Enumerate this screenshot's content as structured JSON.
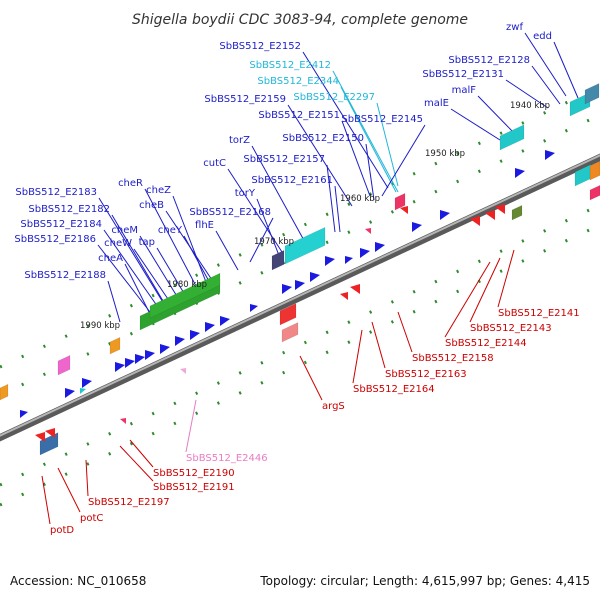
{
  "title": "Shigella boydii CDC 3083-94, complete genome",
  "footer": {
    "accession": "Accession: NC_010658",
    "summary": "Topology: circular; Length: 4,615,997 bp; Genes: 4,415"
  },
  "colors": {
    "forward_label": "#1c1cc8",
    "reverse_label": "#cc0000",
    "cyan_label": "#20b8d8",
    "pink_label": "#e87cc4",
    "backbone": "#888888",
    "tick": "#2e8b2e"
  },
  "scale_labels": [
    {
      "text": "1940 kbp",
      "kbp": 1940
    },
    {
      "text": "1950 kbp",
      "kbp": 1950
    },
    {
      "text": "1960 kbp",
      "kbp": 1960
    },
    {
      "text": "1970 kbp",
      "kbp": 1970
    },
    {
      "text": "1980 kbp",
      "kbp": 1980
    },
    {
      "text": "1990 kbp",
      "kbp": 1990
    }
  ],
  "forward_labels": [
    {
      "text": "edd",
      "color": "forward"
    },
    {
      "text": "zwf",
      "color": "forward"
    },
    {
      "text": "SbBS512_E2128",
      "color": "forward"
    },
    {
      "text": "SbBS512_E2131",
      "color": "forward"
    },
    {
      "text": "malF",
      "color": "forward"
    },
    {
      "text": "malE",
      "color": "forward"
    },
    {
      "text": "SbBS512_E2152",
      "color": "forward"
    },
    {
      "text": "SbBS512_E2412",
      "color": "cyan"
    },
    {
      "text": "SbBS512_E2344",
      "color": "cyan"
    },
    {
      "text": "SbBS512_E2297",
      "color": "cyan"
    },
    {
      "text": "SbBS512_E2159",
      "color": "forward"
    },
    {
      "text": "SbBS512_E2151",
      "color": "forward"
    },
    {
      "text": "SbBS512_E2145",
      "color": "forward"
    },
    {
      "text": "SbBS512_E2150",
      "color": "forward"
    },
    {
      "text": "torZ",
      "color": "forward"
    },
    {
      "text": "SbBS512_E2157",
      "color": "forward"
    },
    {
      "text": "cutC",
      "color": "forward"
    },
    {
      "text": "SbBS512_E2161",
      "color": "forward"
    },
    {
      "text": "torY",
      "color": "forward"
    },
    {
      "text": "cheR",
      "color": "forward"
    },
    {
      "text": "cheZ",
      "color": "forward"
    },
    {
      "text": "cheB",
      "color": "forward"
    },
    {
      "text": "SbBS512_E2168",
      "color": "forward"
    },
    {
      "text": "SbBS512_E2183",
      "color": "forward"
    },
    {
      "text": "SbBS512_E2182",
      "color": "forward"
    },
    {
      "text": "SbBS512_E2184",
      "color": "forward"
    },
    {
      "text": "cheY",
      "color": "forward"
    },
    {
      "text": "flhE",
      "color": "forward"
    },
    {
      "text": "cheM",
      "color": "forward"
    },
    {
      "text": "SbBS512_E2186",
      "color": "forward"
    },
    {
      "text": "cheW",
      "color": "forward"
    },
    {
      "text": "tap",
      "color": "forward"
    },
    {
      "text": "cheA",
      "color": "forward"
    },
    {
      "text": "SbBS512_E2188",
      "color": "forward"
    }
  ],
  "reverse_labels": [
    {
      "text": "SbBS512_E2141",
      "color": "reverse"
    },
    {
      "text": "SbBS512_E2143",
      "color": "reverse"
    },
    {
      "text": "SbBS512_E2144",
      "color": "reverse"
    },
    {
      "text": "SbBS512_E2158",
      "color": "reverse"
    },
    {
      "text": "SbBS512_E2163",
      "color": "reverse"
    },
    {
      "text": "SbBS512_E2164",
      "color": "reverse"
    },
    {
      "text": "argS",
      "color": "reverse"
    },
    {
      "text": "SbBS512_E2446",
      "color": "pink"
    },
    {
      "text": "SbBS512_E2190",
      "color": "reverse"
    },
    {
      "text": "SbBS512_E2191",
      "color": "reverse"
    },
    {
      "text": "SbBS512_E2197",
      "color": "reverse"
    },
    {
      "text": "potC",
      "color": "reverse"
    },
    {
      "text": "potD",
      "color": "reverse"
    }
  ]
}
